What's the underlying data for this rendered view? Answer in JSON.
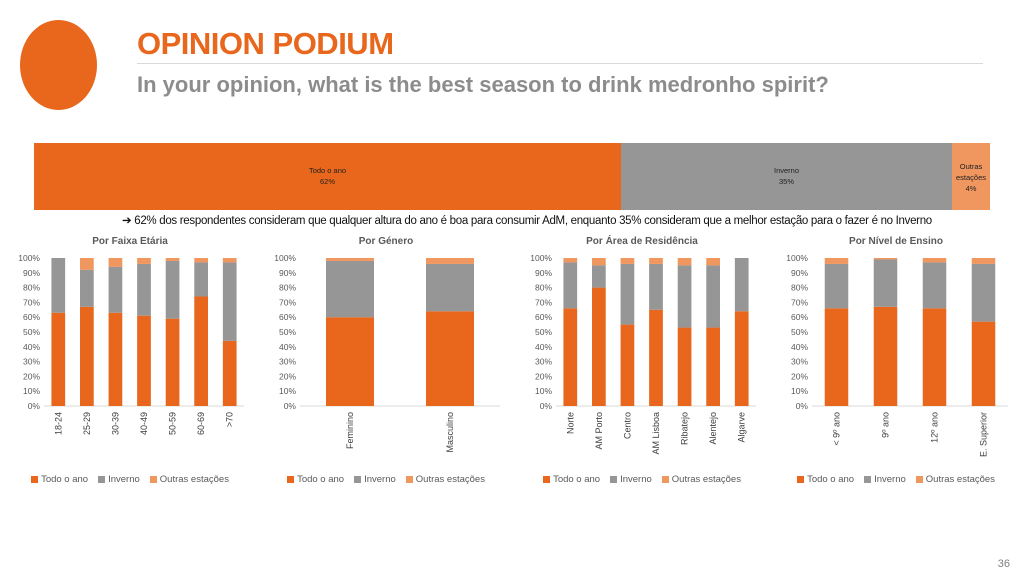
{
  "header": {
    "title": "OPINION PODIUM",
    "subtitle": "In your opinion, what is the best season to drink medronho spirit?"
  },
  "colors": {
    "todo": "#e8671c",
    "inverno": "#969696",
    "outras": "#f0965f"
  },
  "overall": {
    "segments": [
      {
        "label": "Todo o ano",
        "value_label": "62%",
        "value": 62,
        "color": "#e8671c"
      },
      {
        "label": "Inverno",
        "value_label": "35%",
        "value": 35,
        "color": "#969696"
      },
      {
        "label": "Outras estações",
        "value_label": "4%",
        "value": 4,
        "color": "#f0965f"
      }
    ]
  },
  "note": "➔ 62% dos respondentes consideram que qualquer altura do ano é boa para consumir AdM, enquanto 35% consideram que a melhor estação para o fazer é no Inverno",
  "legend": [
    "Todo o ano",
    "Inverno",
    "Outras estações"
  ],
  "page_number": "36",
  "chart_data": [
    {
      "type": "bar",
      "stacked": true,
      "title": "Por Faixa Etária",
      "categories": [
        "18-24",
        "25-29",
        "30-39",
        "40-49",
        "50-59",
        "60-69",
        ">70"
      ],
      "series": [
        {
          "name": "Todo o ano",
          "values": [
            63,
            67,
            63,
            61,
            59,
            74,
            44
          ]
        },
        {
          "name": "Inverno",
          "values": [
            37,
            25,
            31,
            35,
            39,
            23,
            53
          ]
        },
        {
          "name": "Outras estações",
          "values": [
            0,
            8,
            6,
            4,
            2,
            3,
            3
          ]
        }
      ],
      "ylim": [
        0,
        100
      ],
      "yticks": [
        "0%",
        "10%",
        "20%",
        "30%",
        "40%",
        "50%",
        "60%",
        "70%",
        "80%",
        "90%",
        "100%"
      ],
      "legend": "bottom"
    },
    {
      "type": "bar",
      "stacked": true,
      "title": "Por Género",
      "categories": [
        "Feminino",
        "Masculino"
      ],
      "series": [
        {
          "name": "Todo o ano",
          "values": [
            60,
            64
          ]
        },
        {
          "name": "Inverno",
          "values": [
            38,
            32
          ]
        },
        {
          "name": "Outras estações",
          "values": [
            2,
            4
          ]
        }
      ],
      "ylim": [
        0,
        100
      ],
      "yticks": [
        "0%",
        "10%",
        "20%",
        "30%",
        "40%",
        "50%",
        "60%",
        "70%",
        "80%",
        "90%",
        "100%"
      ],
      "legend": "bottom"
    },
    {
      "type": "bar",
      "stacked": true,
      "title": "Por Área de Residência",
      "categories": [
        "Norte",
        "AM Porto",
        "Centro",
        "AM Lisboa",
        "Ribatejo",
        "Alentejo",
        "Algarve"
      ],
      "series": [
        {
          "name": "Todo o ano",
          "values": [
            66,
            80,
            55,
            65,
            53,
            53,
            64
          ]
        },
        {
          "name": "Inverno",
          "values": [
            31,
            15,
            41,
            31,
            42,
            42,
            36
          ]
        },
        {
          "name": "Outras estações",
          "values": [
            3,
            5,
            4,
            4,
            5,
            5,
            0
          ]
        }
      ],
      "ylim": [
        0,
        100
      ],
      "yticks": [
        "0%",
        "10%",
        "20%",
        "30%",
        "40%",
        "50%",
        "60%",
        "70%",
        "80%",
        "90%",
        "100%"
      ],
      "legend": "bottom"
    },
    {
      "type": "bar",
      "stacked": true,
      "title": "Por Nível de Ensino",
      "categories": [
        "< 9º ano",
        "9º ano",
        "12º ano",
        "E. Superior"
      ],
      "series": [
        {
          "name": "Todo o ano",
          "values": [
            66,
            67,
            66,
            57
          ]
        },
        {
          "name": "Inverno",
          "values": [
            30,
            32,
            31,
            39
          ]
        },
        {
          "name": "Outras estações",
          "values": [
            4,
            1,
            3,
            4
          ]
        }
      ],
      "ylim": [
        0,
        100
      ],
      "yticks": [
        "0%",
        "10%",
        "20%",
        "30%",
        "40%",
        "50%",
        "60%",
        "70%",
        "80%",
        "90%",
        "100%"
      ],
      "legend": "bottom"
    }
  ]
}
